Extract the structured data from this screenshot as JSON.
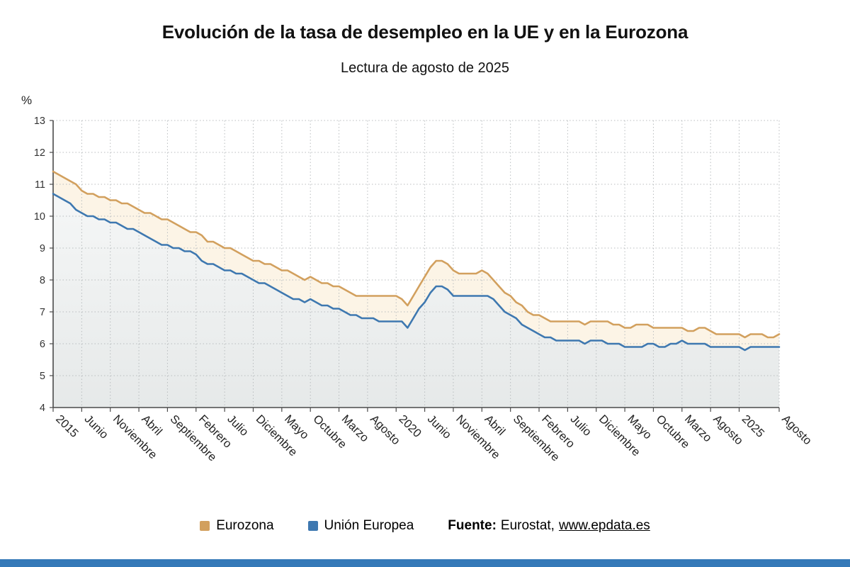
{
  "header": {
    "title": "Evolución de la tasa de desempleo en la UE y en la Eurozona",
    "subtitle": "Lectura de agosto de 2025"
  },
  "legend": {
    "eurozona": "Eurozona",
    "eu": "Unión Europea"
  },
  "source": {
    "label_bold": "Fuente:",
    "text": "Eurostat,",
    "link": "www.epdata.es"
  },
  "colors": {
    "eurozona_line": "#d2a05e",
    "eu_line": "#3e78b0",
    "eurozona_fill": "#fcf4e6",
    "eu_fill_top": "#fafbfb",
    "eu_fill_bottom": "#e6e9e9",
    "grid": "#b9bdbf",
    "axis": "#4a4a4a",
    "footer_bar": "#3579b8"
  },
  "chart_data": {
    "type": "line",
    "title": "Evolución de la tasa de desempleo en la UE y en la Eurozona",
    "subtitle": "Lectura de agosto de 2025",
    "xlabel": "",
    "ylabel": "%",
    "ylim": [
      4,
      13
    ],
    "y_ticks": [
      4,
      5,
      6,
      7,
      8,
      9,
      10,
      11,
      12,
      13
    ],
    "grid": "dotted",
    "legend_position": "bottom",
    "x_tick_labels": [
      {
        "i": 0,
        "label": "2015"
      },
      {
        "i": 5,
        "label": "Junio"
      },
      {
        "i": 10,
        "label": "Noviembre"
      },
      {
        "i": 15,
        "label": "Abril"
      },
      {
        "i": 20,
        "label": "Septiembre"
      },
      {
        "i": 25,
        "label": "Febrero"
      },
      {
        "i": 30,
        "label": "Julio"
      },
      {
        "i": 35,
        "label": "Diciembre"
      },
      {
        "i": 40,
        "label": "Mayo"
      },
      {
        "i": 45,
        "label": "Octubre"
      },
      {
        "i": 50,
        "label": "Marzo"
      },
      {
        "i": 55,
        "label": "Agosto"
      },
      {
        "i": 60,
        "label": "2020"
      },
      {
        "i": 65,
        "label": "Junio"
      },
      {
        "i": 70,
        "label": "Noviembre"
      },
      {
        "i": 75,
        "label": "Abril"
      },
      {
        "i": 80,
        "label": "Septiembre"
      },
      {
        "i": 85,
        "label": "Febrero"
      },
      {
        "i": 90,
        "label": "Julio"
      },
      {
        "i": 95,
        "label": "Diciembre"
      },
      {
        "i": 100,
        "label": "Mayo"
      },
      {
        "i": 105,
        "label": "Octubre"
      },
      {
        "i": 110,
        "label": "Marzo"
      },
      {
        "i": 115,
        "label": "Agosto"
      },
      {
        "i": 120,
        "label": "2025"
      },
      {
        "i": 127,
        "label": "Agosto"
      }
    ],
    "series": [
      {
        "name": "Eurozona",
        "color": "#d2a05e",
        "values": [
          11.4,
          11.3,
          11.2,
          11.1,
          11.0,
          10.8,
          10.7,
          10.7,
          10.6,
          10.6,
          10.5,
          10.5,
          10.4,
          10.4,
          10.3,
          10.2,
          10.1,
          10.1,
          10.0,
          9.9,
          9.9,
          9.8,
          9.7,
          9.6,
          9.5,
          9.5,
          9.4,
          9.2,
          9.2,
          9.1,
          9.0,
          9.0,
          8.9,
          8.8,
          8.7,
          8.6,
          8.6,
          8.5,
          8.5,
          8.4,
          8.3,
          8.3,
          8.2,
          8.1,
          8.0,
          8.1,
          8.0,
          7.9,
          7.9,
          7.8,
          7.8,
          7.7,
          7.6,
          7.5,
          7.5,
          7.5,
          7.5,
          7.5,
          7.5,
          7.5,
          7.5,
          7.4,
          7.2,
          7.5,
          7.8,
          8.1,
          8.4,
          8.6,
          8.6,
          8.5,
          8.3,
          8.2,
          8.2,
          8.2,
          8.2,
          8.3,
          8.2,
          8.0,
          7.8,
          7.6,
          7.5,
          7.3,
          7.2,
          7.0,
          6.9,
          6.9,
          6.8,
          6.7,
          6.7,
          6.7,
          6.7,
          6.7,
          6.7,
          6.6,
          6.7,
          6.7,
          6.7,
          6.7,
          6.6,
          6.6,
          6.5,
          6.5,
          6.6,
          6.6,
          6.6,
          6.5,
          6.5,
          6.5,
          6.5,
          6.5,
          6.5,
          6.4,
          6.4,
          6.5,
          6.5,
          6.4,
          6.3,
          6.3,
          6.3,
          6.3,
          6.3,
          6.2,
          6.3,
          6.3,
          6.3,
          6.2,
          6.2,
          6.3
        ]
      },
      {
        "name": "Unión Europea",
        "color": "#3e78b0",
        "values": [
          10.7,
          10.6,
          10.5,
          10.4,
          10.2,
          10.1,
          10.0,
          10.0,
          9.9,
          9.9,
          9.8,
          9.8,
          9.7,
          9.6,
          9.6,
          9.5,
          9.4,
          9.3,
          9.2,
          9.1,
          9.1,
          9.0,
          9.0,
          8.9,
          8.9,
          8.8,
          8.6,
          8.5,
          8.5,
          8.4,
          8.3,
          8.3,
          8.2,
          8.2,
          8.1,
          8.0,
          7.9,
          7.9,
          7.8,
          7.7,
          7.6,
          7.5,
          7.4,
          7.4,
          7.3,
          7.4,
          7.3,
          7.2,
          7.2,
          7.1,
          7.1,
          7.0,
          6.9,
          6.9,
          6.8,
          6.8,
          6.8,
          6.7,
          6.7,
          6.7,
          6.7,
          6.7,
          6.5,
          6.8,
          7.1,
          7.3,
          7.6,
          7.8,
          7.8,
          7.7,
          7.5,
          7.5,
          7.5,
          7.5,
          7.5,
          7.5,
          7.5,
          7.4,
          7.2,
          7.0,
          6.9,
          6.8,
          6.6,
          6.5,
          6.4,
          6.3,
          6.2,
          6.2,
          6.1,
          6.1,
          6.1,
          6.1,
          6.1,
          6.0,
          6.1,
          6.1,
          6.1,
          6.0,
          6.0,
          6.0,
          5.9,
          5.9,
          5.9,
          5.9,
          6.0,
          6.0,
          5.9,
          5.9,
          6.0,
          6.0,
          6.1,
          6.0,
          6.0,
          6.0,
          6.0,
          5.9,
          5.9,
          5.9,
          5.9,
          5.9,
          5.9,
          5.8,
          5.9,
          5.9,
          5.9,
          5.9,
          5.9,
          5.9
        ]
      }
    ]
  }
}
